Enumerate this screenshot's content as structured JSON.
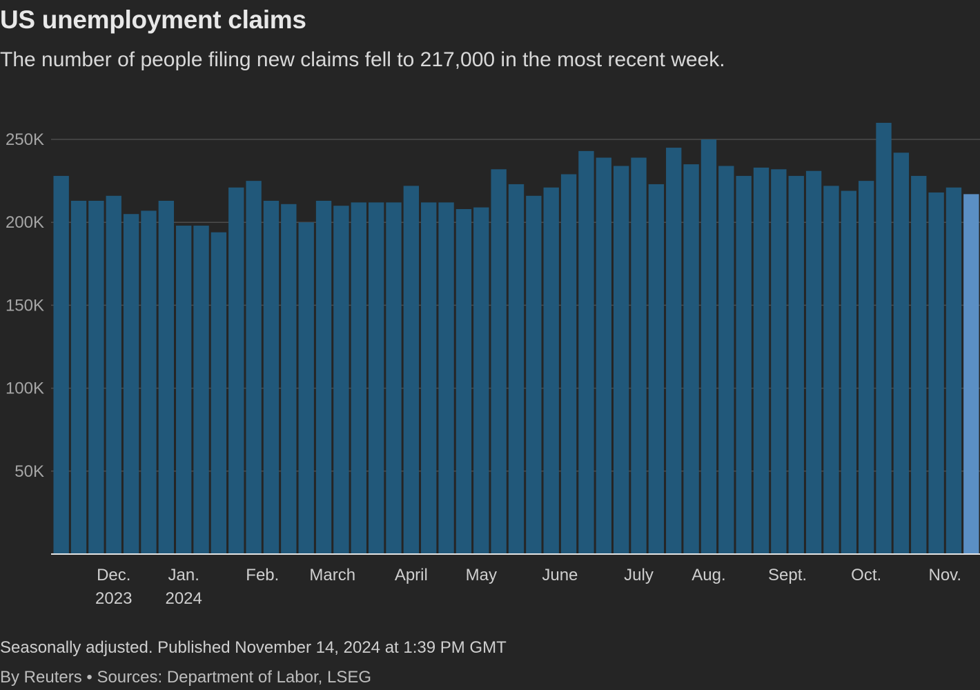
{
  "title": "US unemployment claims",
  "subtitle": "The number of people filing new claims fell to 217,000 in the most recent week.",
  "footer": {
    "note": "Seasonally adjusted. Published November 14, 2024 at 1:39 PM GMT",
    "source": "By Reuters • Sources: Department of Labor, LSEG"
  },
  "colors": {
    "background": "#252525",
    "bar": "#21587a",
    "highlight_bar": "#5b8fc4",
    "grid": "#4d4d4d",
    "axis_text": "#a6a6a6",
    "month_text": "#cfcfcf"
  },
  "chart_data": {
    "type": "bar",
    "title": "US unemployment claims",
    "xlabel": "",
    "ylabel": "",
    "ylim": [
      0,
      260000
    ],
    "yticks": [
      50000,
      100000,
      150000,
      200000,
      250000
    ],
    "ytick_labels": [
      "50K",
      "100K",
      "150K",
      "200K",
      "250K"
    ],
    "grid": true,
    "x_start": "2023-11-18",
    "x_interval": "weekly",
    "values": [
      228000,
      213000,
      213000,
      216000,
      205000,
      207000,
      213000,
      198000,
      198000,
      194000,
      221000,
      225000,
      213000,
      211000,
      200000,
      213000,
      210000,
      212000,
      212000,
      212000,
      222000,
      212000,
      212000,
      208000,
      209000,
      232000,
      223000,
      216000,
      221000,
      229000,
      243000,
      239000,
      234000,
      239000,
      223000,
      245000,
      235000,
      250000,
      234000,
      228000,
      233000,
      232000,
      228000,
      231000,
      222000,
      219000,
      225000,
      260000,
      242000,
      228000,
      218000,
      221000,
      217000
    ],
    "highlight_index": 52,
    "month_labels": [
      {
        "label": "Dec.",
        "year": "2023",
        "bar_index": 3
      },
      {
        "label": "Jan.",
        "year": "2024",
        "bar_index": 7
      },
      {
        "label": "Feb.",
        "year": "",
        "bar_index": 11.5
      },
      {
        "label": "March",
        "year": "",
        "bar_index": 15.5
      },
      {
        "label": "April",
        "year": "",
        "bar_index": 20
      },
      {
        "label": "May",
        "year": "",
        "bar_index": 24
      },
      {
        "label": "June",
        "year": "",
        "bar_index": 28.5
      },
      {
        "label": "July",
        "year": "",
        "bar_index": 33
      },
      {
        "label": "Aug.",
        "year": "",
        "bar_index": 37
      },
      {
        "label": "Sept.",
        "year": "",
        "bar_index": 41.5
      },
      {
        "label": "Oct.",
        "year": "",
        "bar_index": 46
      },
      {
        "label": "Nov.",
        "year": "",
        "bar_index": 50.5
      }
    ]
  }
}
